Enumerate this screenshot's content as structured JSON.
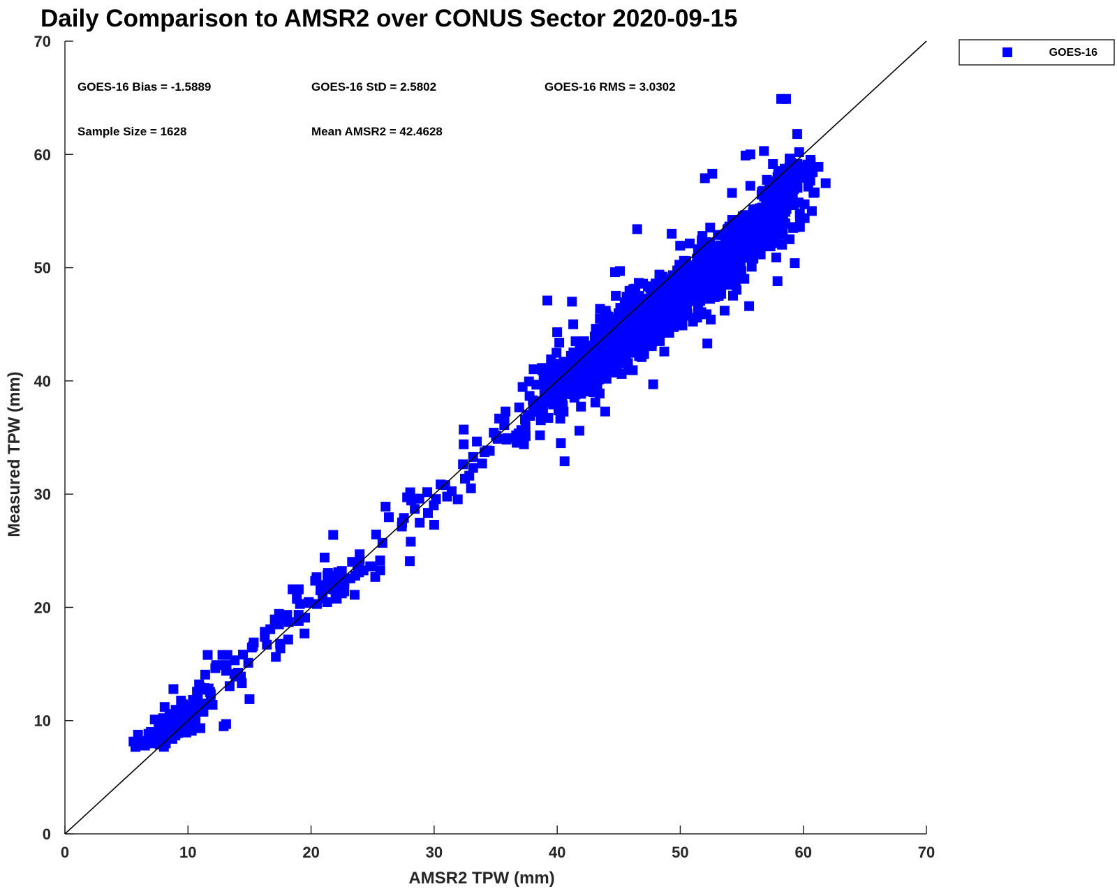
{
  "chart_data": {
    "type": "scatter",
    "title": "Daily Comparison to AMSR2 over CONUS Sector 2020-09-15",
    "xlabel": "AMSR2 TPW (mm)",
    "ylabel": "Measured TPW (mm)",
    "xlim": [
      0,
      70
    ],
    "ylim": [
      0,
      70
    ],
    "xticks": [
      "0",
      "10",
      "20",
      "30",
      "40",
      "50",
      "60",
      "70"
    ],
    "yticks": [
      "0",
      "10",
      "20",
      "30",
      "40",
      "50",
      "60",
      "70"
    ],
    "grid": false,
    "legend_position": "outside top-right",
    "reference_line": "1:1",
    "stats": [
      "GOES-16 Bias = -1.5889",
      "GOES-16 StD = 2.5802",
      "GOES-16 RMS = 3.0302",
      "Sample Size = 1628",
      "Mean AMSR2 = 42.4628"
    ],
    "series": [
      {
        "name": "GOES-16",
        "color": "#0000ff",
        "marker": "square",
        "clusters": [
          {
            "xc": 9.0,
            "yc": 9.8,
            "sx": 1.5,
            "sy": 1.4,
            "n": 90
          },
          {
            "xc": 14.5,
            "yc": 15.2,
            "sx": 2.2,
            "sy": 1.8,
            "n": 35
          },
          {
            "xc": 22.0,
            "yc": 22.0,
            "sx": 2.3,
            "sy": 1.6,
            "n": 55
          },
          {
            "xc": 29.5,
            "yc": 29.5,
            "sx": 2.5,
            "sy": 2.0,
            "n": 25
          },
          {
            "xc": 36.0,
            "yc": 35.0,
            "sx": 1.8,
            "sy": 1.5,
            "n": 20
          },
          {
            "xc": 43.0,
            "yc": 41.5,
            "sx": 2.6,
            "sy": 2.2,
            "n": 400
          },
          {
            "xc": 48.5,
            "yc": 46.8,
            "sx": 2.8,
            "sy": 2.2,
            "n": 420
          },
          {
            "xc": 54.0,
            "yc": 51.0,
            "sx": 2.6,
            "sy": 2.3,
            "n": 330
          },
          {
            "xc": 57.5,
            "yc": 55.5,
            "sx": 1.8,
            "sy": 2.4,
            "n": 210
          }
        ],
        "points": [
          [
            6.0,
            8.2
          ],
          [
            6.2,
            7.9
          ],
          [
            7.3,
            10.1
          ],
          [
            7.7,
            7.9
          ],
          [
            8.1,
            11.2
          ],
          [
            9.2,
            8.9
          ],
          [
            10.3,
            9.1
          ],
          [
            10.9,
            13.2
          ],
          [
            11.6,
            15.8
          ],
          [
            12.0,
            11.4
          ],
          [
            12.9,
            9.5
          ],
          [
            13.1,
            9.7
          ],
          [
            12.8,
            15.8
          ],
          [
            13.2,
            15.8
          ],
          [
            13.1,
            14.4
          ],
          [
            15.0,
            11.9
          ],
          [
            17.4,
            18.5
          ],
          [
            18.2,
            18.7
          ],
          [
            19.0,
            18.8
          ],
          [
            18.5,
            21.6
          ],
          [
            19.0,
            21.6
          ],
          [
            21.1,
            24.4
          ],
          [
            21.8,
            26.4
          ],
          [
            23.9,
            23.1
          ],
          [
            25.8,
            25.7
          ],
          [
            27.4,
            27.5
          ],
          [
            28.8,
            29.6
          ],
          [
            28.1,
            25.8
          ],
          [
            30.0,
            27.3
          ],
          [
            30.9,
            30.8
          ],
          [
            32.4,
            34.4
          ],
          [
            32.4,
            35.7
          ],
          [
            33.9,
            32.7
          ],
          [
            34.1,
            33.7
          ],
          [
            35.7,
            36.1
          ],
          [
            35.8,
            37.3
          ],
          [
            37.3,
            34.4
          ],
          [
            38.6,
            35.2
          ],
          [
            38.9,
            38.1
          ],
          [
            40.0,
            44.3
          ],
          [
            39.2,
            47.1
          ],
          [
            41.2,
            47.0
          ],
          [
            40.6,
            32.9
          ],
          [
            40.3,
            34.5
          ],
          [
            41.3,
            45.0
          ],
          [
            43.9,
            37.3
          ],
          [
            46.5,
            53.4
          ],
          [
            52.2,
            43.3
          ],
          [
            53.6,
            46.2
          ],
          [
            55.6,
            46.6
          ],
          [
            57.9,
            48.8
          ],
          [
            57.8,
            50.9
          ],
          [
            58.2,
            64.9
          ],
          [
            58.6,
            64.9
          ],
          [
            59.5,
            61.8
          ],
          [
            60.1,
            55.6
          ],
          [
            60.6,
            59.3
          ],
          [
            60.7,
            58.7
          ],
          [
            59.3,
            50.4
          ],
          [
            57.9,
            58.0
          ],
          [
            55.7,
            60.0
          ],
          [
            56.8,
            60.3
          ],
          [
            55.3,
            59.9
          ],
          [
            54.2,
            56.6
          ],
          [
            52.0,
            57.9
          ],
          [
            52.6,
            58.3
          ],
          [
            51.8,
            52.8
          ],
          [
            49.3,
            53.0
          ],
          [
            48.0,
            48.6
          ],
          [
            45.1,
            49.7
          ],
          [
            44.7,
            49.6
          ],
          [
            47.8,
            39.7
          ],
          [
            49.8,
            44.9
          ],
          [
            48.7,
            42.6
          ],
          [
            43.1,
            38.1
          ],
          [
            41.5,
            38.8
          ],
          [
            39.5,
            41.9
          ],
          [
            38.3,
            38.2
          ],
          [
            40.1,
            37.4
          ],
          [
            41.8,
            35.6
          ]
        ]
      }
    ]
  }
}
